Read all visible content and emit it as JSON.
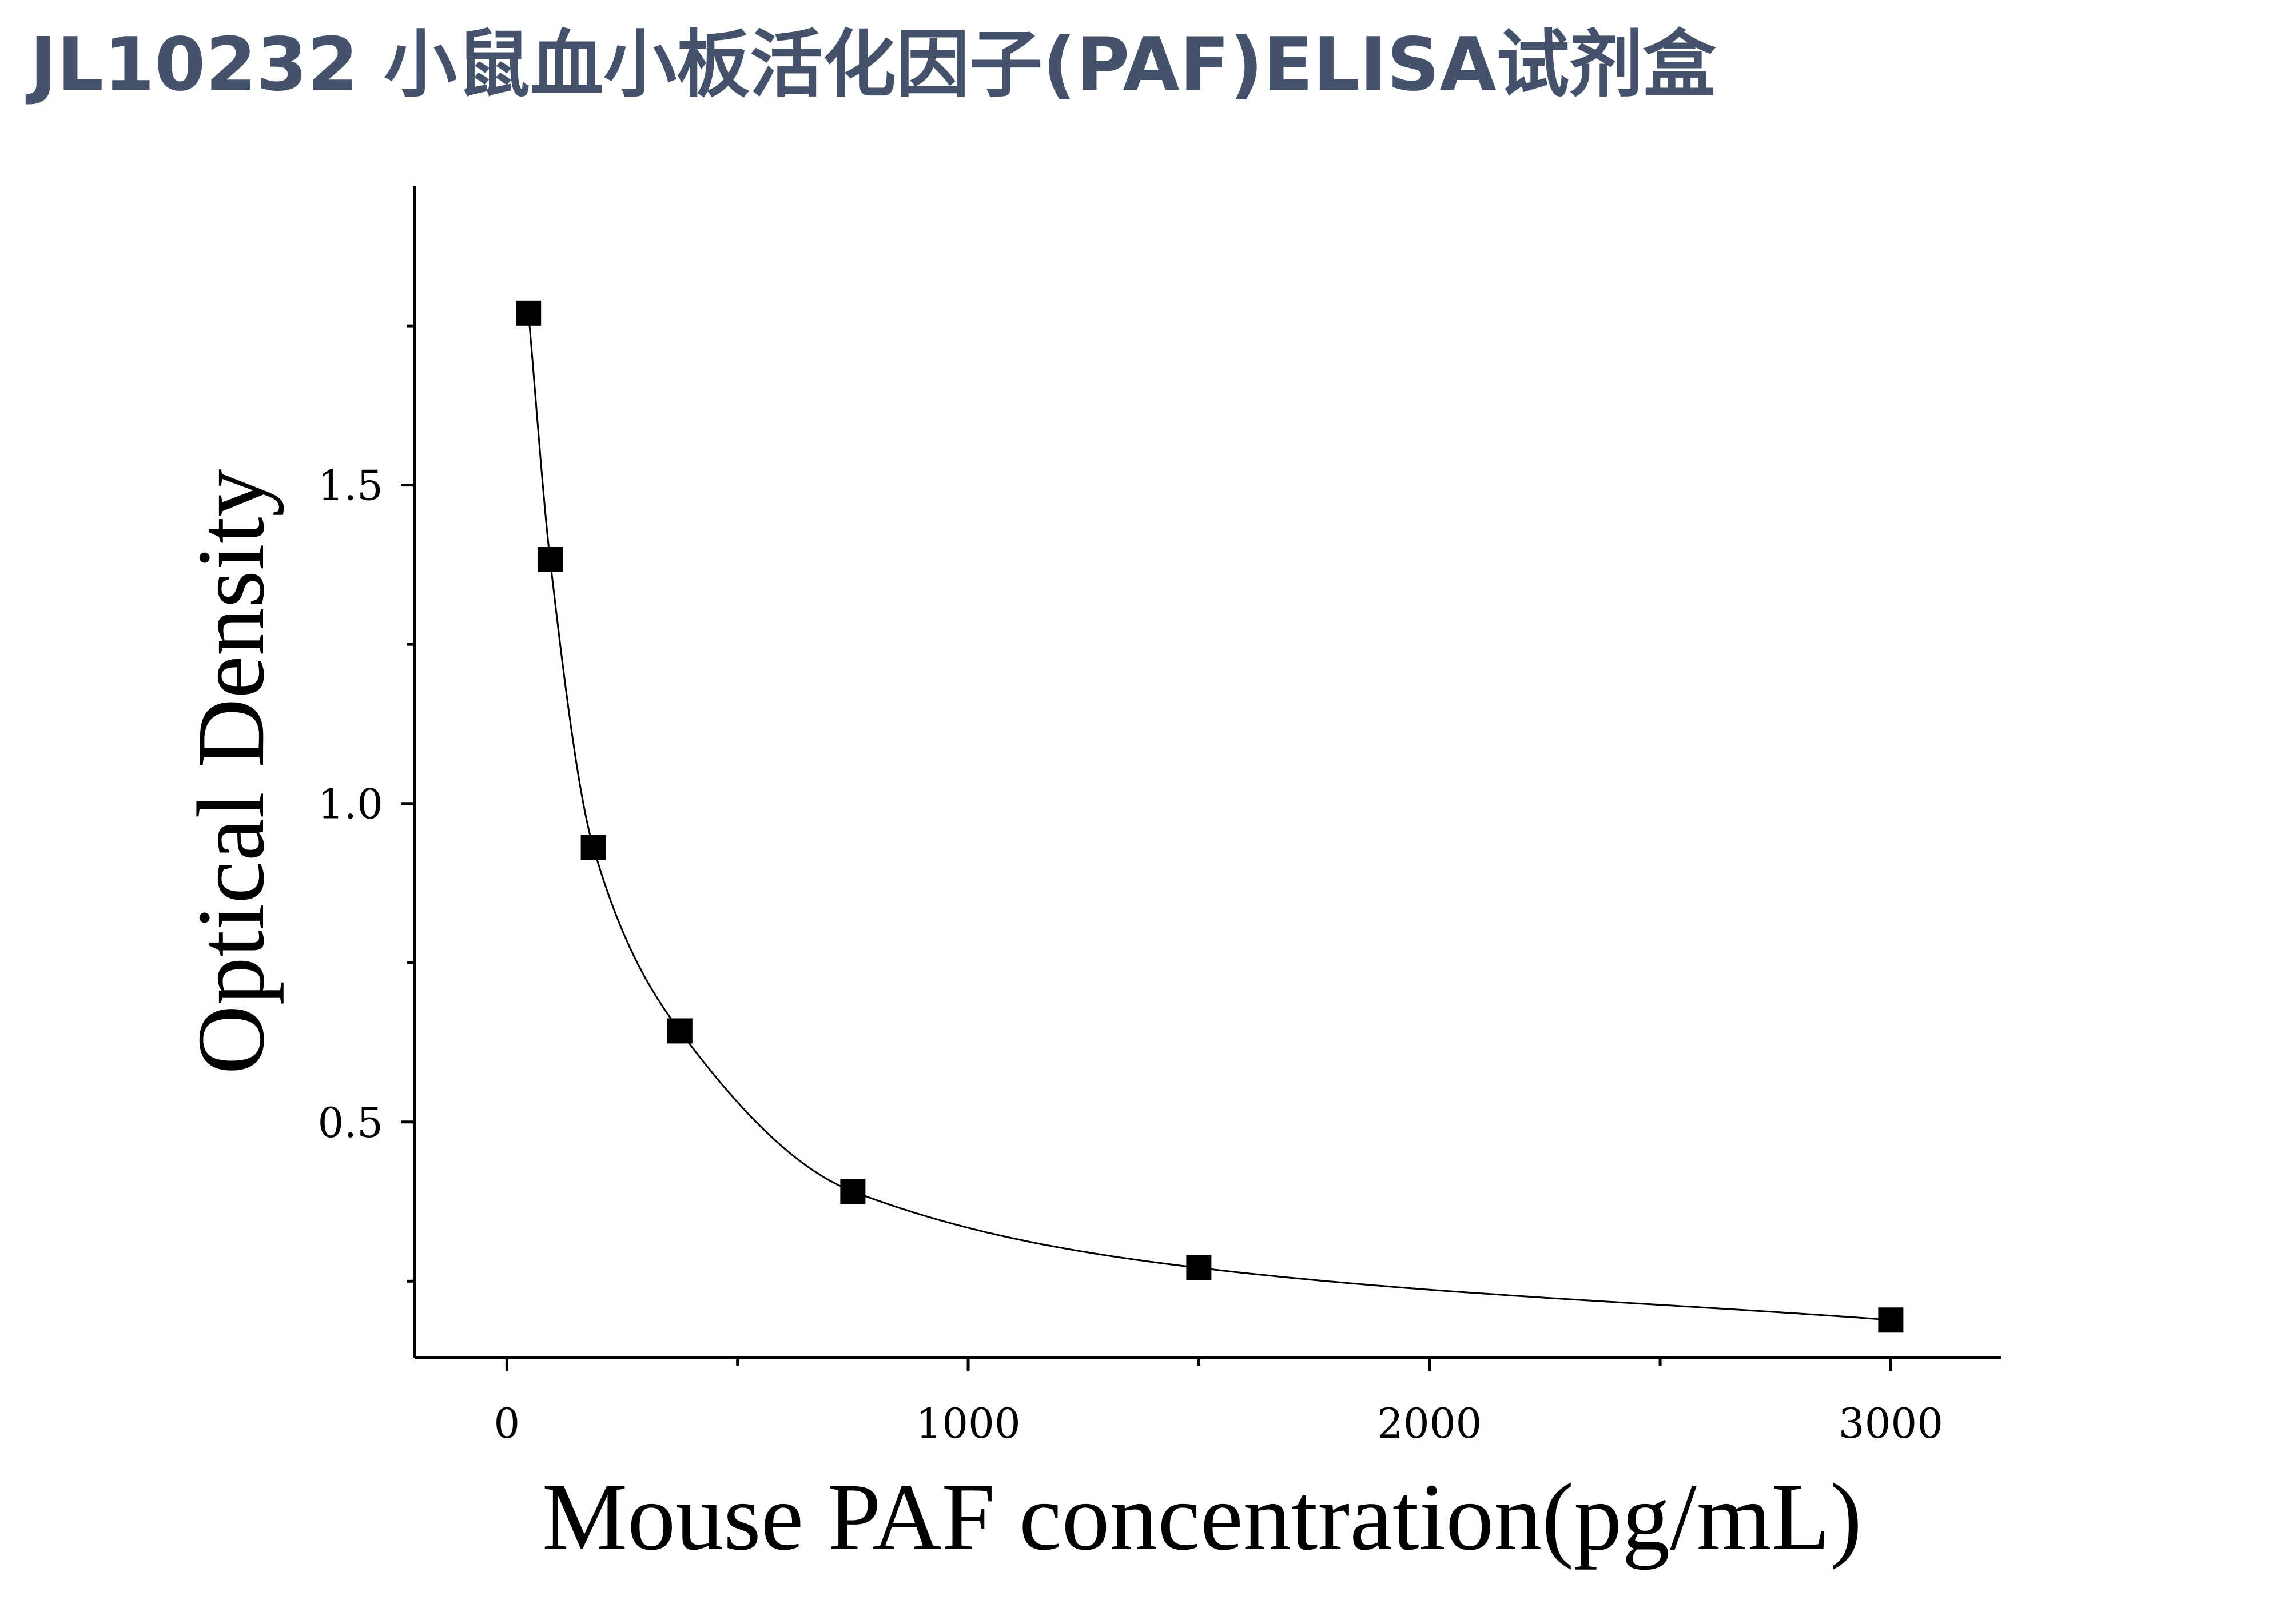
{
  "page": {
    "title": "JL10232 小鼠血小板活化因子(PAF)ELISA试剂盒",
    "title_color": "#44526b"
  },
  "chart_data": {
    "type": "scatter",
    "xlabel": "Mouse PAF concentration(pg/mL)",
    "ylabel": "Optical Density",
    "xlim": [
      -200,
      3240
    ],
    "ylim": [
      0.13,
      1.97
    ],
    "x_ticks": [
      0,
      1000,
      2000,
      3000
    ],
    "x_tick_labels": [
      "0",
      "1000",
      "2000",
      "3000"
    ],
    "x_minor_ticks": [
      500,
      1500,
      2500
    ],
    "y_ticks": [
      0.5,
      1.0,
      1.5
    ],
    "y_tick_labels": [
      "0.5",
      "1.0",
      "1.5"
    ],
    "y_minor_ticks": [
      0.25,
      0.75,
      1.25,
      1.75
    ],
    "grid": false,
    "legend": "none",
    "marker": "square",
    "marker_color": "#000000",
    "fit_line": true,
    "fit_line_color": "#000000",
    "series": [
      {
        "x": [
          46.875,
          93.75,
          187.5,
          375,
          750,
          1500,
          3000
        ],
        "y": [
          1.77,
          1.383,
          0.931,
          0.643,
          0.391,
          0.271,
          0.189
        ]
      }
    ]
  }
}
